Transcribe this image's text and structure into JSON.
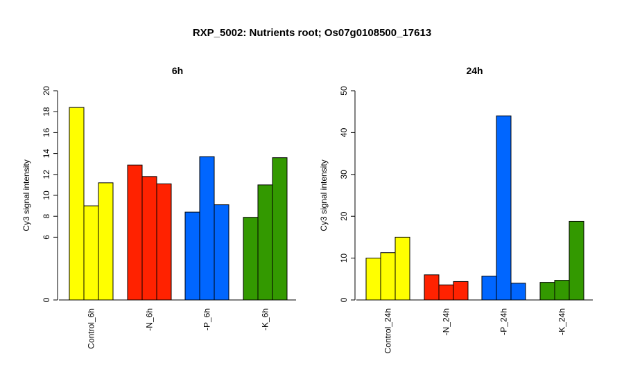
{
  "title": "RXP_5002: Nutrients root; Os07g0108500_17613",
  "colors": {
    "Control": "#ffff00",
    "N": "#ff2200",
    "P": "#0066ff",
    "K": "#339900"
  },
  "chart_data": [
    {
      "type": "bar",
      "title": "6h",
      "ylabel": "Cy3 signal intensity",
      "ylim": [
        0,
        20
      ],
      "yticks": [
        0,
        6,
        8,
        10,
        12,
        14,
        16,
        18,
        20
      ],
      "categories": [
        "Control_6h",
        "-N_6h",
        "-P_6h",
        "-K_6h"
      ],
      "groups": [
        {
          "label": "Control_6h",
          "color": "#ffff00",
          "values": [
            18.4,
            9.0,
            11.2
          ]
        },
        {
          "label": "-N_6h",
          "color": "#ff2200",
          "values": [
            12.9,
            11.8,
            11.1
          ]
        },
        {
          "label": "-P_6h",
          "color": "#0066ff",
          "values": [
            8.4,
            13.7,
            9.1
          ]
        },
        {
          "label": "-K_6h",
          "color": "#339900",
          "values": [
            7.9,
            11.0,
            13.6
          ]
        }
      ]
    },
    {
      "type": "bar",
      "title": "24h",
      "ylabel": "Cy3 signal intensity",
      "ylim": [
        0,
        50
      ],
      "yticks": [
        0,
        10,
        20,
        30,
        40,
        50
      ],
      "categories": [
        "Control_24h",
        "-N_24h",
        "-P_24h",
        "-K_24h"
      ],
      "groups": [
        {
          "label": "Control_24h",
          "color": "#ffff00",
          "values": [
            10.0,
            11.3,
            15.0
          ]
        },
        {
          "label": "-N_24h",
          "color": "#ff2200",
          "values": [
            6.0,
            3.6,
            4.4
          ]
        },
        {
          "label": "-P_24h",
          "color": "#0066ff",
          "values": [
            5.7,
            44.0,
            4.0
          ]
        },
        {
          "label": "-K_24h",
          "color": "#339900",
          "values": [
            4.2,
            4.7,
            18.8
          ]
        }
      ]
    }
  ]
}
